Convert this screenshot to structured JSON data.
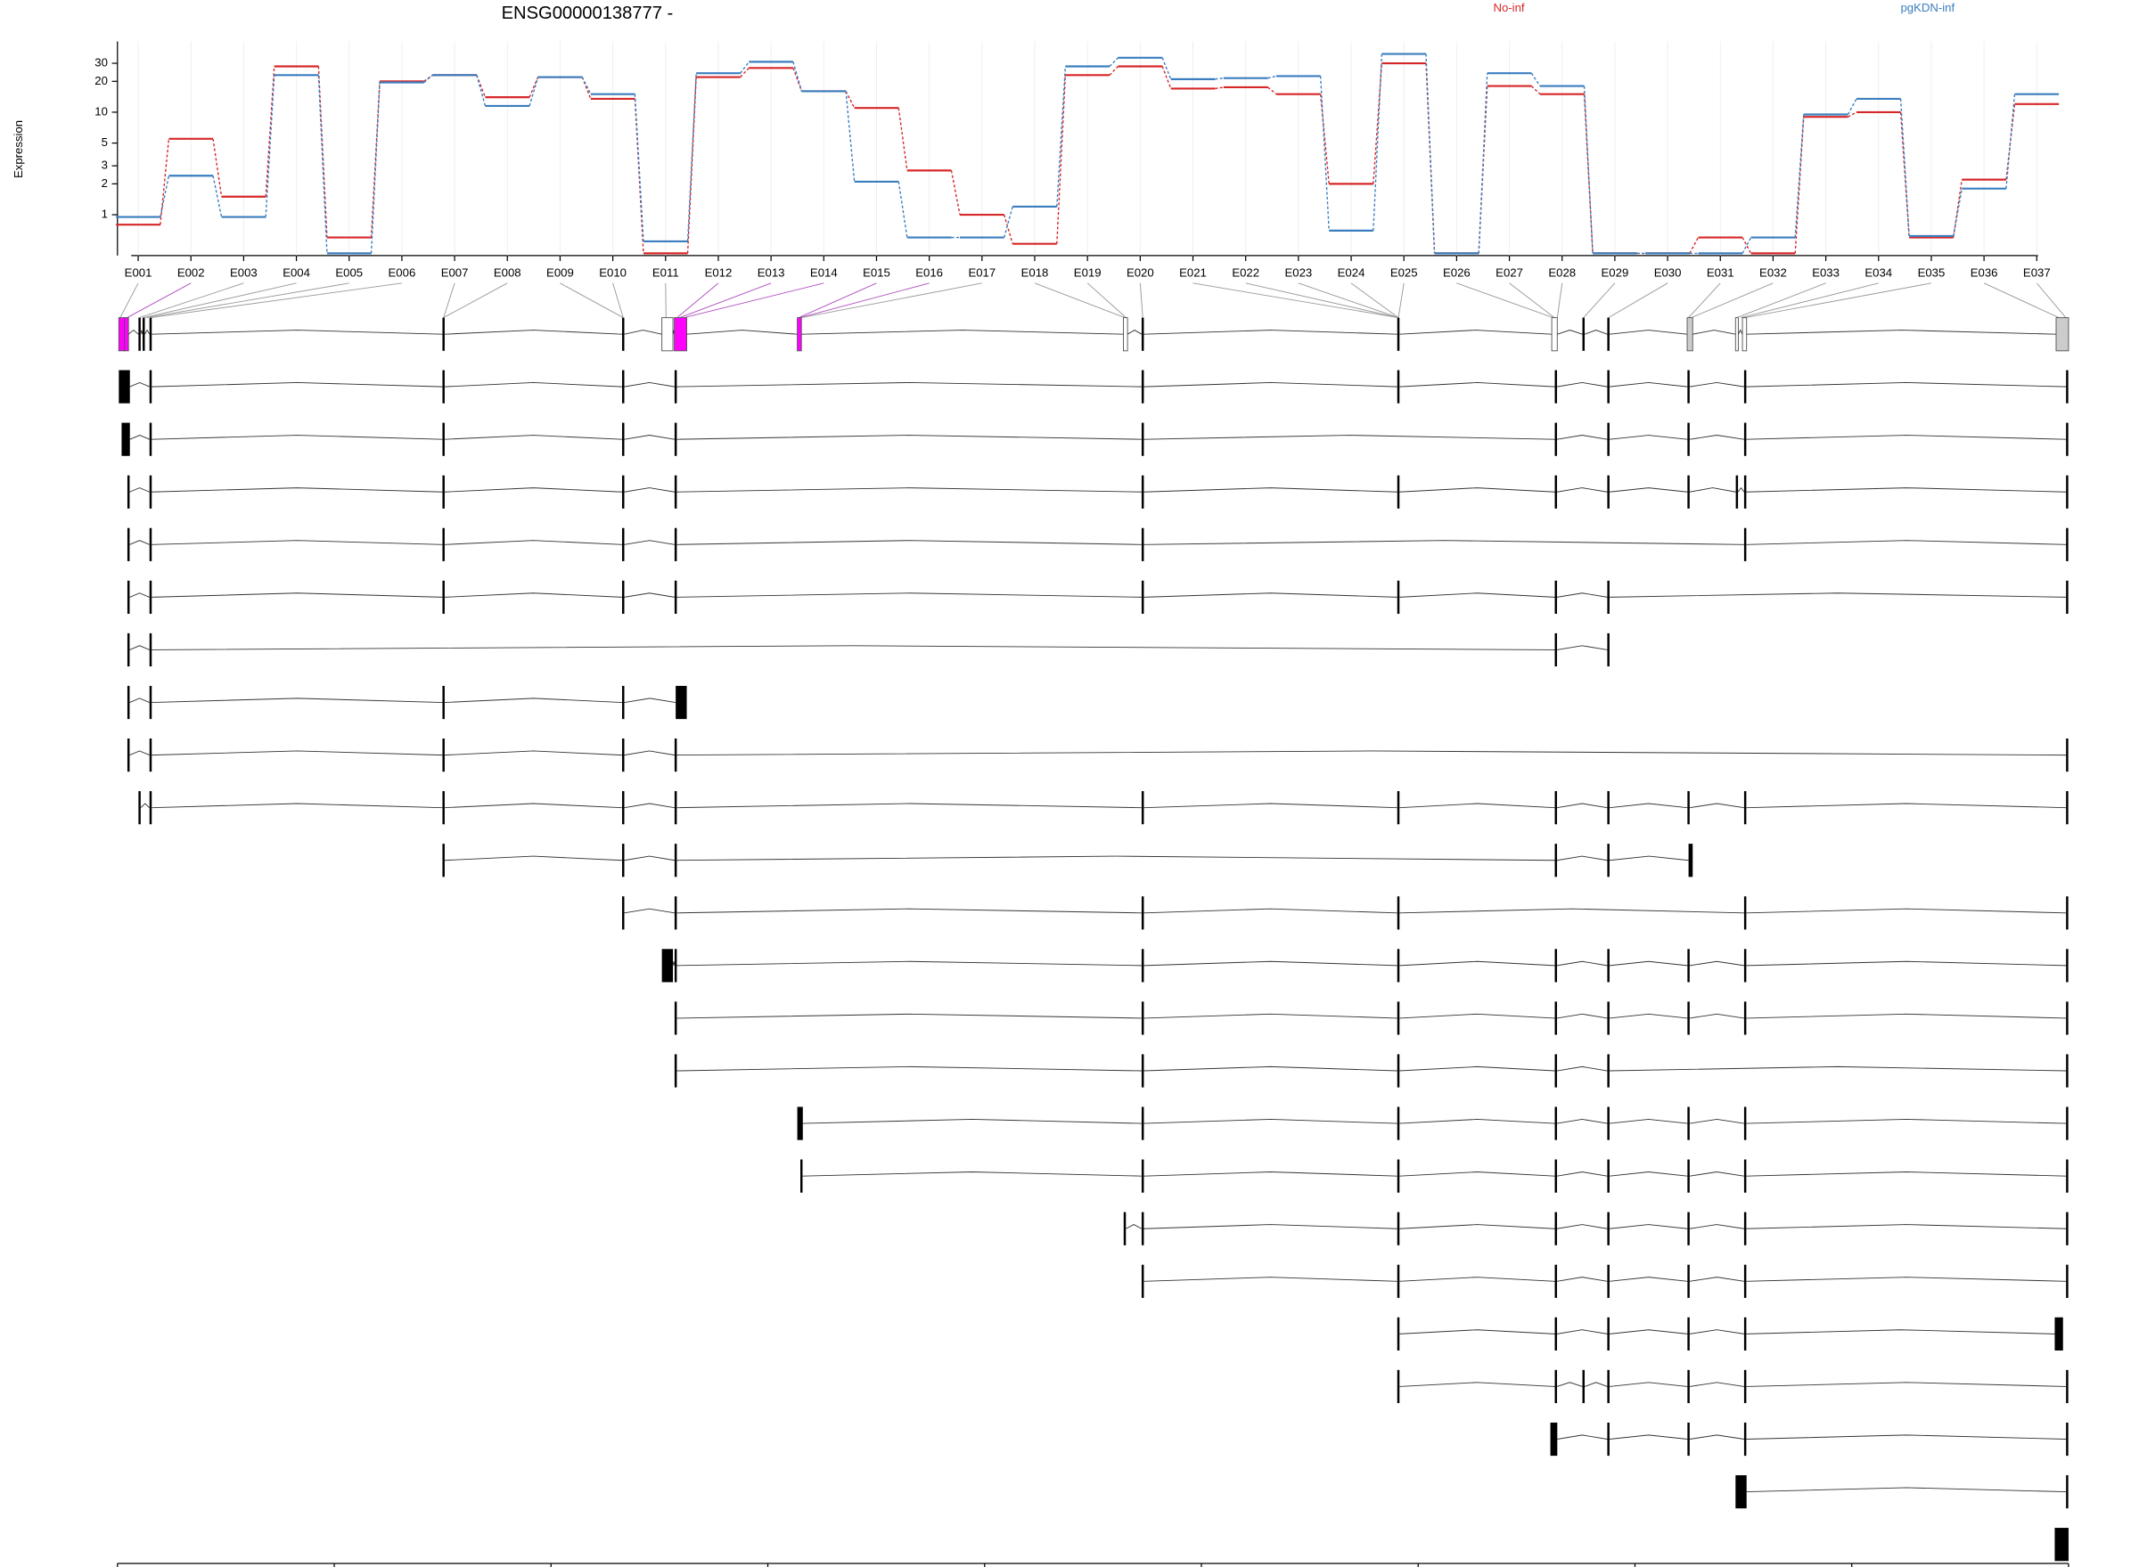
{
  "chart_data": {
    "type": "line",
    "title": "ENSG00000138777 -",
    "y_label": "Expression",
    "log_y": true,
    "categories": [
      "E001",
      "E002",
      "E003",
      "E004",
      "E005",
      "E006",
      "E007",
      "E008",
      "E009",
      "E010",
      "E011",
      "E012",
      "E013",
      "E014",
      "E015",
      "E016",
      "E017",
      "E018",
      "E019",
      "E020",
      "E021",
      "E022",
      "E023",
      "E024",
      "E025",
      "E026",
      "E027",
      "E028",
      "E029",
      "E030",
      "E031",
      "E032",
      "E033",
      "E034",
      "E035",
      "E036",
      "E037"
    ],
    "series": [
      {
        "name": "No-inf",
        "color": "#d62728",
        "values": [
          0.8,
          5.5,
          1.5,
          28,
          0.6,
          20,
          23,
          14,
          22,
          13.5,
          0.42,
          22,
          27,
          16,
          11,
          2.7,
          1.0,
          0.52,
          23,
          28,
          17,
          17.5,
          15,
          2,
          30,
          0.42,
          18,
          15,
          0.42,
          0.42,
          0.6,
          0.42,
          9,
          10,
          0.6,
          2.2,
          12
        ]
      },
      {
        "name": "pgKDN-inf",
        "color": "#3a7dbf",
        "values": [
          0.95,
          2.4,
          0.95,
          23,
          0.42,
          19.5,
          23,
          11.5,
          22,
          15,
          0.55,
          24,
          31,
          16,
          2.1,
          0.6,
          0.6,
          1.2,
          28,
          34,
          21,
          21.5,
          22.5,
          0.7,
          37,
          0.42,
          24,
          18,
          0.42,
          0.42,
          0.42,
          0.6,
          9.5,
          13.5,
          0.62,
          1.8,
          15
        ]
      }
    ],
    "ylim": [
      0.4,
      49
    ],
    "yticks": [
      1,
      2,
      3,
      5,
      10,
      20,
      30
    ],
    "grid": true,
    "genome_axis": {
      "xlim": [
        105369077,
        105474067
      ],
      "xticks": [
        105369077,
        105380743,
        105392408,
        105404074,
        105415739,
        105427405,
        105439070,
        105450736,
        105462401,
        105474067
      ]
    }
  }
}
